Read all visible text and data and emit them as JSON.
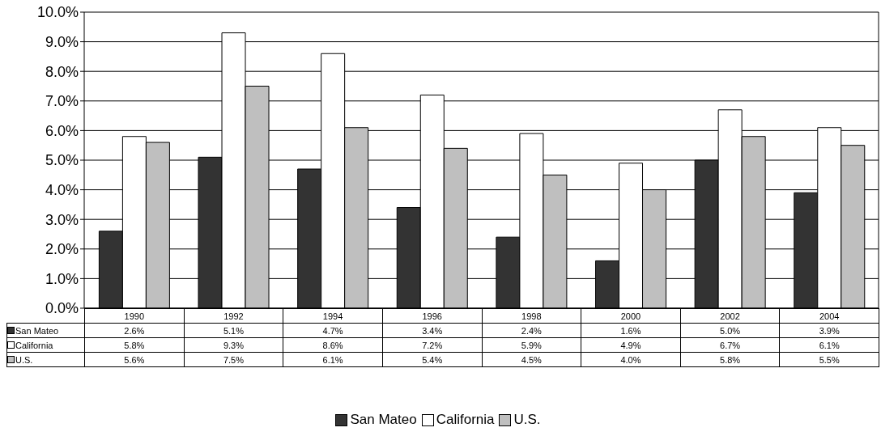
{
  "chart_data": {
    "type": "bar",
    "categories": [
      "1990",
      "1992",
      "1994",
      "1996",
      "1998",
      "2000",
      "2002",
      "2004"
    ],
    "series": [
      {
        "name": "San Mateo",
        "color": "#333333",
        "values": [
          2.6,
          5.1,
          4.7,
          3.4,
          2.4,
          1.6,
          5.0,
          3.9
        ],
        "value_labels": [
          "2.6%",
          "5.1%",
          "4.7%",
          "3.4%",
          "2.4%",
          "1.6%",
          "5.0%",
          "3.9%"
        ]
      },
      {
        "name": "California",
        "color": "#ffffff",
        "values": [
          5.8,
          9.3,
          8.6,
          7.2,
          5.9,
          4.9,
          6.7,
          6.1
        ],
        "value_labels": [
          "5.8%",
          "9.3%",
          "8.6%",
          "7.2%",
          "5.9%",
          "4.9%",
          "6.7%",
          "6.1%"
        ]
      },
      {
        "name": "U.S.",
        "color": "#bfbfbf",
        "values": [
          5.6,
          7.5,
          6.1,
          5.4,
          4.5,
          4.0,
          5.8,
          5.5
        ],
        "value_labels": [
          "5.6%",
          "7.5%",
          "6.1%",
          "5.4%",
          "4.5%",
          "4.0%",
          "5.8%",
          "5.5%"
        ]
      }
    ],
    "ylim": [
      0,
      10
    ],
    "yticks": [
      {
        "value": 0,
        "label": "0.0%"
      },
      {
        "value": 1,
        "label": "1.0%"
      },
      {
        "value": 2,
        "label": "2.0%"
      },
      {
        "value": 3,
        "label": "3.0%"
      },
      {
        "value": 4,
        "label": "4.0%"
      },
      {
        "value": 5,
        "label": "5.0%"
      },
      {
        "value": 6,
        "label": "6.0%"
      },
      {
        "value": 7,
        "label": "7.0%"
      },
      {
        "value": 8,
        "label": "8.0%"
      },
      {
        "value": 9,
        "label": "9.0%"
      },
      {
        "value": 10,
        "label": "10.0%"
      }
    ],
    "grid": "y",
    "legend": "bottom"
  }
}
